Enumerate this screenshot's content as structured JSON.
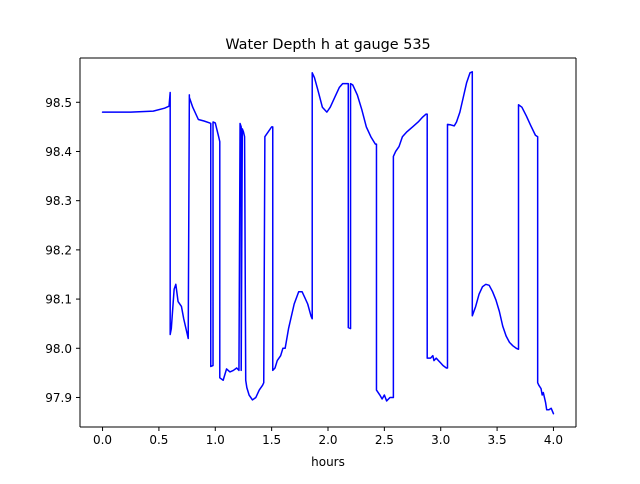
{
  "chart_data": {
    "type": "line",
    "title": "Water Depth h at gauge 535",
    "xlabel": "hours",
    "ylabel": "",
    "xlim": [
      -0.2,
      4.2
    ],
    "ylim": [
      97.84,
      98.59
    ],
    "xticks": [
      0.0,
      0.5,
      1.0,
      1.5,
      2.0,
      2.5,
      3.0,
      3.5,
      4.0
    ],
    "xtick_labels": [
      "0.0",
      "0.5",
      "1.0",
      "1.5",
      "2.0",
      "2.5",
      "3.0",
      "3.5",
      "4.0"
    ],
    "yticks": [
      97.9,
      98.0,
      98.1,
      98.2,
      98.3,
      98.4,
      98.5
    ],
    "ytick_labels": [
      "97.9",
      "98.0",
      "98.1",
      "98.2",
      "98.3",
      "98.4",
      "98.5"
    ],
    "grid": false,
    "line_color": "#0000ff",
    "series": [
      {
        "x": [
          0.0,
          0.25,
          0.45,
          0.55,
          0.59,
          0.6,
          0.6,
          0.61,
          0.635,
          0.65,
          0.67,
          0.7,
          0.72,
          0.75,
          0.76,
          0.77,
          0.77,
          0.8,
          0.85,
          0.9,
          0.95,
          0.96,
          0.96,
          0.98,
          0.98,
          1.0,
          1.03,
          1.04,
          1.04,
          1.07,
          1.1,
          1.13,
          1.16,
          1.19,
          1.21,
          1.22,
          1.23,
          1.23,
          1.24,
          1.25,
          1.26,
          1.27,
          1.28,
          1.3,
          1.33,
          1.36,
          1.39,
          1.42,
          1.43,
          1.44,
          1.44,
          1.47,
          1.5,
          1.51,
          1.51,
          1.53,
          1.55,
          1.58,
          1.6,
          1.62,
          1.65,
          1.7,
          1.74,
          1.77,
          1.79,
          1.82,
          1.85,
          1.86,
          1.86,
          1.88,
          1.91,
          1.95,
          1.99,
          2.02,
          2.06,
          2.1,
          2.13,
          2.18,
          2.18,
          2.2,
          2.2,
          2.22,
          2.26,
          2.3,
          2.34,
          2.38,
          2.42,
          2.43,
          2.43,
          2.46,
          2.48,
          2.5,
          2.52,
          2.55,
          2.57,
          2.58,
          2.58,
          2.6,
          2.63,
          2.66,
          2.7,
          2.75,
          2.8,
          2.84,
          2.87,
          2.88,
          2.88,
          2.91,
          2.93,
          2.94,
          2.96,
          2.98,
          3.0,
          3.02,
          3.05,
          3.06,
          3.06,
          3.09,
          3.12,
          3.14,
          3.17,
          3.2,
          3.23,
          3.26,
          3.28,
          3.28,
          3.31,
          3.34,
          3.37,
          3.4,
          3.43,
          3.46,
          3.49,
          3.52,
          3.55,
          3.58,
          3.61,
          3.64,
          3.67,
          3.69,
          3.69,
          3.72,
          3.76,
          3.8,
          3.84,
          3.86,
          3.86,
          3.87,
          3.89,
          3.9,
          3.91,
          3.93,
          3.94,
          3.96,
          3.98,
          4.0
        ],
        "values": [
          98.48,
          98.48,
          98.482,
          98.488,
          98.492,
          98.52,
          98.028,
          98.04,
          98.12,
          98.13,
          98.095,
          98.085,
          98.06,
          98.03,
          98.02,
          98.515,
          98.51,
          98.49,
          98.465,
          98.462,
          98.458,
          98.457,
          97.963,
          97.965,
          98.46,
          98.458,
          98.43,
          98.42,
          97.94,
          97.935,
          97.958,
          97.952,
          97.955,
          97.96,
          97.955,
          98.457,
          98.45,
          97.955,
          98.446,
          98.44,
          98.43,
          97.935,
          97.92,
          97.905,
          97.895,
          97.9,
          97.915,
          97.925,
          97.93,
          98.43,
          98.43,
          98.44,
          98.45,
          98.45,
          97.955,
          97.96,
          97.975,
          97.985,
          98.0,
          98.0,
          98.04,
          98.09,
          98.115,
          98.115,
          98.105,
          98.09,
          98.065,
          98.06,
          98.56,
          98.55,
          98.525,
          98.49,
          98.48,
          98.49,
          98.51,
          98.53,
          98.538,
          98.538,
          98.042,
          98.04,
          98.538,
          98.535,
          98.515,
          98.485,
          98.45,
          98.43,
          98.415,
          98.415,
          97.915,
          97.905,
          97.897,
          97.905,
          97.893,
          97.9,
          97.9,
          97.9,
          98.39,
          98.4,
          98.41,
          98.43,
          98.44,
          98.45,
          98.46,
          98.47,
          98.476,
          98.476,
          97.98,
          97.98,
          97.985,
          97.975,
          97.98,
          97.975,
          97.97,
          97.965,
          97.96,
          97.96,
          98.455,
          98.454,
          98.452,
          98.46,
          98.48,
          98.51,
          98.54,
          98.56,
          98.562,
          98.066,
          98.085,
          98.11,
          98.125,
          98.13,
          98.128,
          98.115,
          98.098,
          98.075,
          98.045,
          98.025,
          98.012,
          98.005,
          98.0,
          97.998,
          98.495,
          98.49,
          98.472,
          98.452,
          98.433,
          98.43,
          97.93,
          97.925,
          97.918,
          97.905,
          97.91,
          97.89,
          97.875,
          97.875,
          97.878,
          97.867
        ]
      }
    ]
  }
}
